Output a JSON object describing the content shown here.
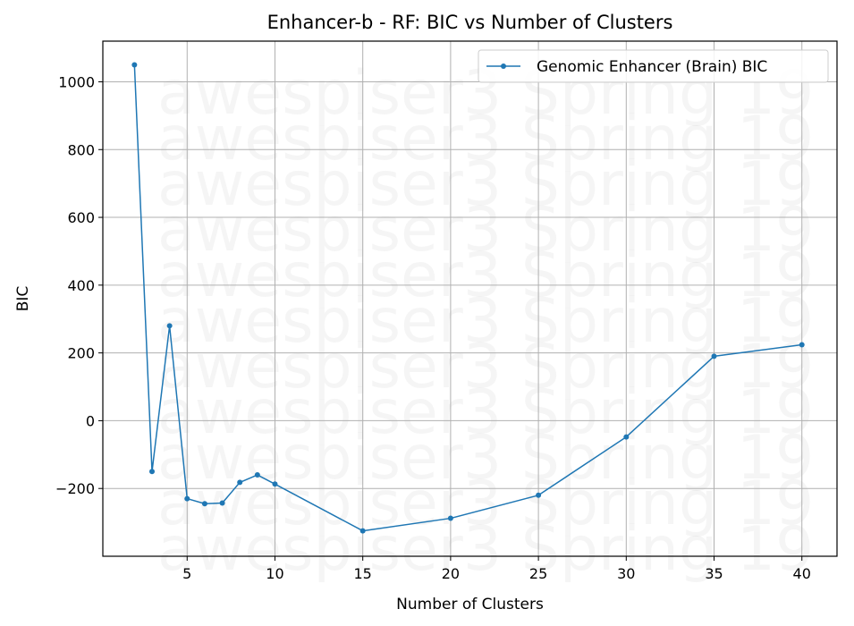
{
  "chart_data": {
    "type": "line",
    "title": "Enhancer-b - RF: BIC vs Number of Clusters",
    "xlabel": "Number of Clusters",
    "ylabel": "BIC",
    "xlim": [
      0.2,
      42.0
    ],
    "ylim": [
      -400,
      1120
    ],
    "xticks": [
      5,
      10,
      15,
      20,
      25,
      30,
      35,
      40
    ],
    "yticks": [
      -200,
      0,
      200,
      400,
      600,
      800,
      1000
    ],
    "ytick_labels": [
      "−200",
      "0",
      "200",
      "400",
      "600",
      "800",
      "1000"
    ],
    "grid": true,
    "legend_position": "upper-right",
    "series": [
      {
        "name": "Genomic Enhancer (Brain) BIC",
        "color": "#1f77b4",
        "x": [
          2,
          3,
          4,
          5,
          6,
          7,
          8,
          9,
          10,
          15,
          20,
          25,
          30,
          35,
          40
        ],
        "y": [
          1050,
          -150,
          280,
          -230,
          -245,
          -243,
          -182,
          -160,
          -187,
          -325,
          -288,
          -220,
          -48,
          190,
          224
        ]
      }
    ],
    "watermark": {
      "text": "awespiser3 Spring 19",
      "repeat": 11
    }
  }
}
